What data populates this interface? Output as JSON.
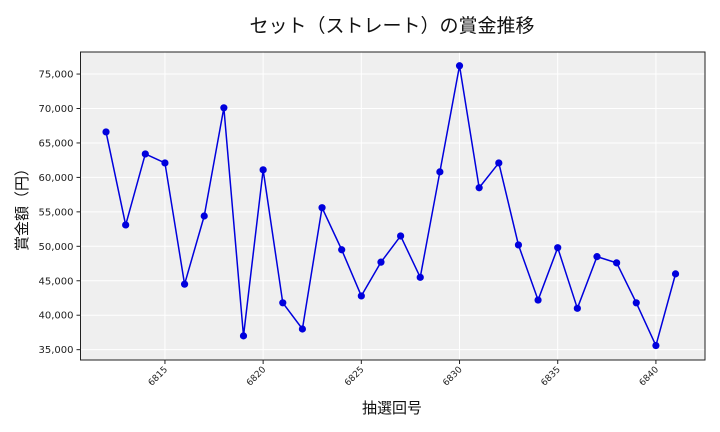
{
  "chart_data": {
    "type": "line",
    "title": "セット（ストレート）の賞金推移",
    "xlabel": "抽選回号",
    "ylabel": "賞金額（円）",
    "x": [
      6812,
      6813,
      6814,
      6815,
      6816,
      6817,
      6818,
      6819,
      6820,
      6821,
      6822,
      6823,
      6824,
      6825,
      6826,
      6827,
      6828,
      6829,
      6830,
      6831,
      6832,
      6833,
      6834,
      6835,
      6836,
      6837,
      6838,
      6839,
      6840,
      6841
    ],
    "series": [
      {
        "name": "賞金額",
        "values": [
          66600,
          53100,
          63400,
          62100,
          44500,
          54400,
          70100,
          37000,
          61100,
          41800,
          38000,
          55600,
          49500,
          42800,
          47700,
          51500,
          45500,
          60800,
          76200,
          58500,
          62100,
          50200,
          42200,
          49800,
          41000,
          48500,
          47600,
          41800,
          35600,
          46000
        ],
        "color": "#0000dd",
        "marker": "circle"
      }
    ],
    "xticks": [
      6815,
      6820,
      6825,
      6830,
      6835,
      6840
    ],
    "xtick_labels": [
      "6815",
      "6820",
      "6825",
      "6830",
      "6835",
      "6840"
    ],
    "yticks": [
      35000,
      40000,
      45000,
      50000,
      55000,
      60000,
      65000,
      70000,
      75000
    ],
    "ytick_labels": [
      "35,000",
      "40,000",
      "45,000",
      "50,000",
      "55,000",
      "60,000",
      "65,000",
      "70,000",
      "75,000"
    ],
    "xlim": [
      6810.7,
      6842.5
    ],
    "ylim": [
      33500,
      78200
    ],
    "grid": true,
    "legend": null,
    "background": "#efefef",
    "grid_color": "#ffffff"
  }
}
